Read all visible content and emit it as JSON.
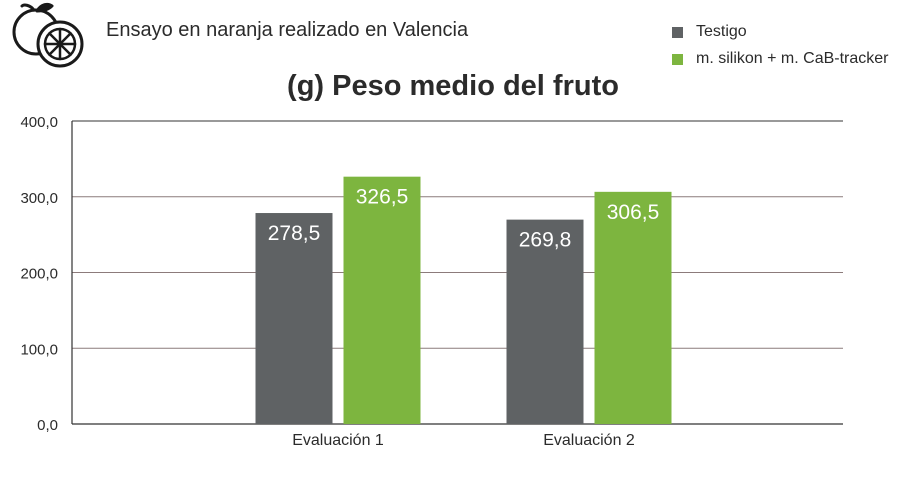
{
  "header": {
    "subtitle": "Ensayo en naranja realizado en Valencia",
    "icon": "orange-fruit-icon"
  },
  "legend": {
    "items": [
      {
        "label": "Testigo",
        "color": "#5f6264"
      },
      {
        "label": "m. silikon + m. CaB-tracker",
        "color": "#7db53f"
      }
    ]
  },
  "chart_data": {
    "type": "bar",
    "title": "(g) Peso medio del fruto",
    "categories": [
      "Evaluación 1",
      "Evaluación 2"
    ],
    "series": [
      {
        "name": "Testigo",
        "values": [
          278.5,
          269.8
        ],
        "labels": [
          "278,5",
          "269,8"
        ],
        "color": "#5f6264"
      },
      {
        "name": "m. silikon + m. CaB-tracker",
        "values": [
          326.5,
          306.5
        ],
        "labels": [
          "326,5",
          "306,5"
        ],
        "color": "#7db53f"
      }
    ],
    "ylim": [
      0,
      400
    ],
    "yticks": [
      0,
      100,
      200,
      300,
      400
    ],
    "ytick_labels": [
      "0,0",
      "100,0",
      "200,0",
      "300,0",
      "400,0"
    ],
    "grid": true,
    "legend_position": "top-right"
  }
}
